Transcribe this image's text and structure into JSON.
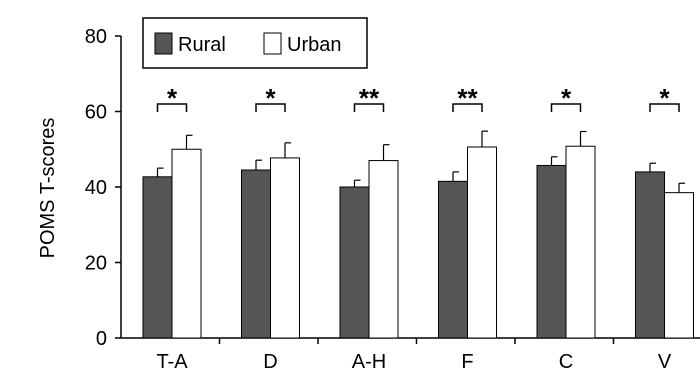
{
  "chart_data": {
    "type": "bar",
    "ylabel": "POMS T-scores",
    "xlabel": "",
    "ylim": [
      0,
      80
    ],
    "yticks": [
      0,
      20,
      40,
      60,
      80
    ],
    "grid": false,
    "legend_position": "top-left",
    "categories": [
      "T-A",
      "D",
      "A-H",
      "F",
      "C",
      "V"
    ],
    "series": [
      {
        "name": "Rural",
        "color": "#555555",
        "values": [
          42.7,
          44.5,
          40.0,
          41.5,
          45.7,
          44.0
        ],
        "errors": [
          2.3,
          2.6,
          1.8,
          2.5,
          2.3,
          2.3
        ]
      },
      {
        "name": "Urban",
        "color": "#ffffff",
        "values": [
          50.0,
          47.7,
          47.0,
          50.6,
          50.8,
          38.5
        ],
        "errors": [
          3.7,
          4.0,
          4.2,
          4.2,
          3.9,
          2.5
        ]
      }
    ],
    "significance": [
      "*",
      "*",
      "**",
      "**",
      "*",
      "*"
    ]
  }
}
